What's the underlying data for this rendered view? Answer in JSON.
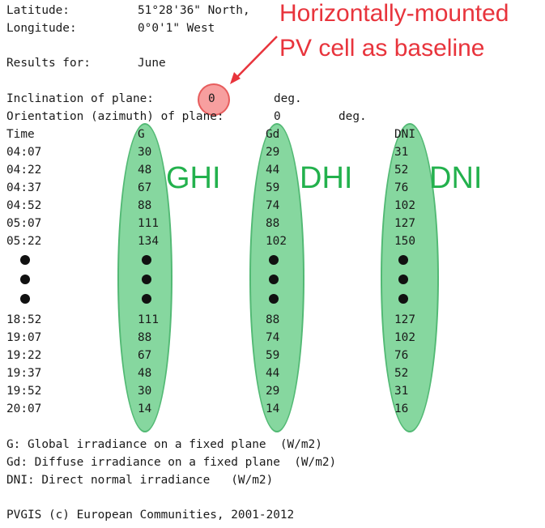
{
  "header": {
    "latitude_label": "Latitude:",
    "latitude_value": "51°28'36\" North,",
    "longitude_label": "Longitude:",
    "longitude_value": "0°0'1\" West",
    "results_label": "Results for:",
    "results_value": "June",
    "inclination_label": "Inclination of plane:",
    "inclination_value": "0",
    "inclination_unit": "deg.",
    "orientation_label": "Orientation (azimuth) of plane:",
    "orientation_value": "0",
    "orientation_unit": "deg."
  },
  "table": {
    "headers": [
      "Time",
      "G",
      "Gd",
      "DNI"
    ],
    "rows_top": [
      [
        "04:07",
        "30",
        "29",
        "31"
      ],
      [
        "04:22",
        "48",
        "44",
        "52"
      ],
      [
        "04:37",
        "67",
        "59",
        "76"
      ],
      [
        "04:52",
        "88",
        "74",
        "102"
      ],
      [
        "05:07",
        "111",
        "88",
        "127"
      ],
      [
        "05:22",
        "134",
        "102",
        "150"
      ]
    ],
    "rows_bottom": [
      [
        "18:52",
        "111",
        "88",
        "127"
      ],
      [
        "19:07",
        "88",
        "74",
        "102"
      ],
      [
        "19:22",
        "67",
        "59",
        "76"
      ],
      [
        "19:37",
        "48",
        "44",
        "52"
      ],
      [
        "19:52",
        "30",
        "29",
        "31"
      ],
      [
        "20:07",
        "14",
        "14",
        "16"
      ]
    ]
  },
  "annotations": {
    "ghi": "GHI",
    "dhi": "DHI",
    "dni": "DNI",
    "baseline_line1": "Horizontally-mounted",
    "baseline_line2": "PV cell as baseline"
  },
  "legend": {
    "g": "G: Global irradiance on a fixed plane  (W/m2)",
    "gd": "Gd: Diffuse irradiance on a fixed plane  (W/m2)",
    "dni": "DNI: Direct normal irradiance   (W/m2)"
  },
  "footer": "PVGIS (c) European Communities, 2001-2012",
  "colors": {
    "highlight_green": "#3cbe64",
    "annotation_green": "#23b14d",
    "annotation_red": "#e8343c"
  }
}
